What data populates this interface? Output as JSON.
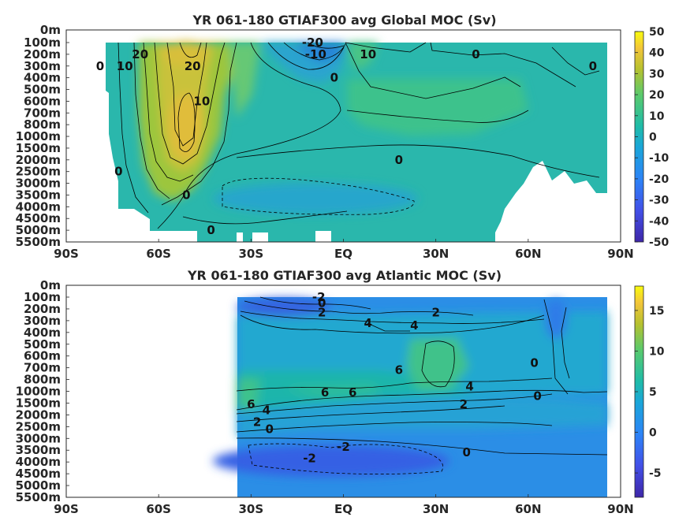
{
  "chart_data": [
    {
      "type": "heatmap",
      "title": "YR 061-180 GTIAF300 avg  Global MOC (Sv)",
      "x_ticks": [
        "90S",
        "60S",
        "30S",
        "EQ",
        "30N",
        "60N",
        "90N"
      ],
      "x_range": [
        -90,
        90
      ],
      "y_ticks": [
        "0m",
        "100m",
        "200m",
        "300m",
        "400m",
        "500m",
        "600m",
        "700m",
        "800m",
        "1000m",
        "1500m",
        "2000m",
        "2500m",
        "3000m",
        "3500m",
        "4000m",
        "4500m",
        "5000m",
        "5500m"
      ],
      "colorbar": {
        "ticks": [
          "50",
          "40",
          "30",
          "20",
          "10",
          "0",
          "-10",
          "-20",
          "-30",
          "-40",
          "-50"
        ],
        "range": [
          -50,
          50
        ]
      },
      "contour_labels": [
        {
          "text": "0",
          "lat": -79,
          "depth_index": 3
        },
        {
          "text": "10",
          "lat": -71,
          "depth_index": 3
        },
        {
          "text": "20",
          "lat": -66,
          "depth_index": 2
        },
        {
          "text": "20",
          "lat": -49,
          "depth_index": 3
        },
        {
          "text": "10",
          "lat": -46,
          "depth_index": 6
        },
        {
          "text": "-20",
          "lat": -10,
          "depth_index": 1
        },
        {
          "text": "-10",
          "lat": -9,
          "depth_index": 2
        },
        {
          "text": "10",
          "lat": 8,
          "depth_index": 2
        },
        {
          "text": "0",
          "lat": -3,
          "depth_index": 4
        },
        {
          "text": "0",
          "lat": 43,
          "depth_index": 2
        },
        {
          "text": "0",
          "lat": 81,
          "depth_index": 3
        },
        {
          "text": "0",
          "lat": 18,
          "depth_index": 11
        },
        {
          "text": "0",
          "lat": -73,
          "depth_index": 12
        },
        {
          "text": "0",
          "lat": -51,
          "depth_index": 14
        },
        {
          "text": "0",
          "lat": -43,
          "depth_index": 17
        }
      ]
    },
    {
      "type": "heatmap",
      "title": "YR 061-180 GTIAF300 avg  Atlantic MOC (Sv)",
      "x_ticks": [
        "90S",
        "60S",
        "30S",
        "EQ",
        "30N",
        "60N",
        "90N"
      ],
      "x_range": [
        -90,
        90
      ],
      "y_ticks": [
        "0m",
        "100m",
        "200m",
        "300m",
        "400m",
        "500m",
        "600m",
        "700m",
        "800m",
        "1000m",
        "1500m",
        "2000m",
        "2500m",
        "3000m",
        "3500m",
        "4000m",
        "4500m",
        "5000m",
        "5500m"
      ],
      "colorbar": {
        "ticks": [
          "15",
          "10",
          "5",
          "0",
          "-5"
        ],
        "range": [
          -8,
          18
        ]
      },
      "contour_labels": [
        {
          "text": "-2",
          "lat": -8,
          "depth_index": 1
        },
        {
          "text": "0",
          "lat": -7,
          "depth_index": 1.5
        },
        {
          "text": "2",
          "lat": -7,
          "depth_index": 2.3
        },
        {
          "text": "4",
          "lat": 8,
          "depth_index": 3.2
        },
        {
          "text": "4",
          "lat": 23,
          "depth_index": 3.4
        },
        {
          "text": "2",
          "lat": 30,
          "depth_index": 2.3
        },
        {
          "text": "6",
          "lat": 18,
          "depth_index": 7.2
        },
        {
          "text": "6",
          "lat": -6,
          "depth_index": 9.1
        },
        {
          "text": "6",
          "lat": 3,
          "depth_index": 9.1
        },
        {
          "text": "6",
          "lat": -30,
          "depth_index": 10.1
        },
        {
          "text": "4",
          "lat": -25,
          "depth_index": 10.6
        },
        {
          "text": "2",
          "lat": -28,
          "depth_index": 11.6
        },
        {
          "text": "0",
          "lat": -24,
          "depth_index": 12.2
        },
        {
          "text": "4",
          "lat": 41,
          "depth_index": 8.6
        },
        {
          "text": "2",
          "lat": 39,
          "depth_index": 10.1
        },
        {
          "text": "0",
          "lat": 63,
          "depth_index": 9.4
        },
        {
          "text": "0",
          "lat": 62,
          "depth_index": 6.6
        },
        {
          "text": "-2",
          "lat": 0,
          "depth_index": 13.7
        },
        {
          "text": "-2",
          "lat": -11,
          "depth_index": 14.7
        },
        {
          "text": "0",
          "lat": 40,
          "depth_index": 14.2
        }
      ]
    }
  ]
}
